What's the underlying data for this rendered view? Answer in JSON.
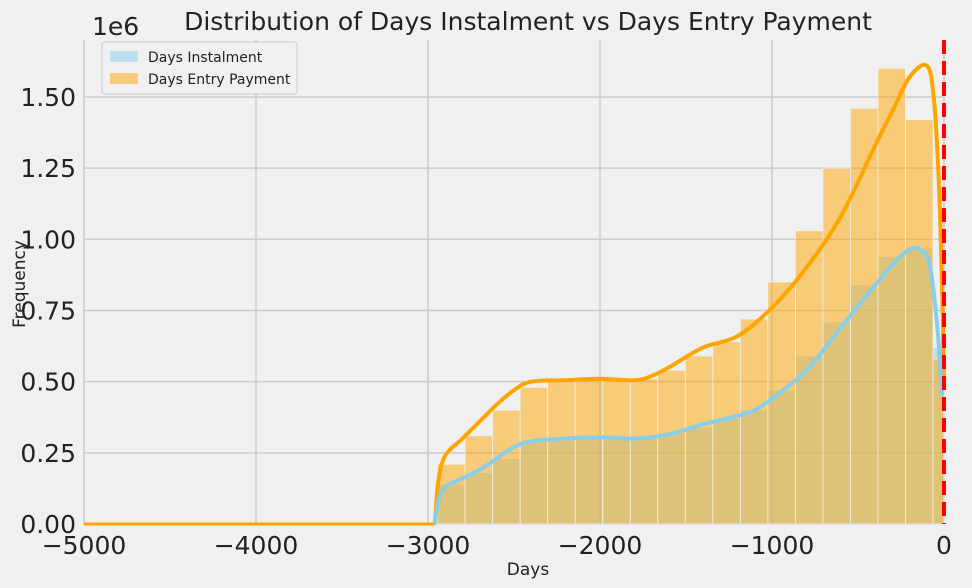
{
  "chart_data": {
    "type": "bar",
    "title": "Distribution of Days Instalment vs Days Entry Payment",
    "xlabel": "Days",
    "ylabel": "Frequency",
    "y_offset_label": "1e6",
    "xlim": [
      -5000,
      0
    ],
    "ylim": [
      0,
      1.7
    ],
    "x_ticks": [
      -5000,
      -4000,
      -3000,
      -2000,
      -1000,
      0
    ],
    "x_tick_labels": [
      "−5000",
      "−4000",
      "−3000",
      "−2000",
      "−1000",
      "0"
    ],
    "y_ticks": [
      0,
      0.25,
      0.5,
      0.75,
      1.0,
      1.25,
      1.5
    ],
    "y_tick_labels": [
      "0.00",
      "0.25",
      "0.50",
      "0.75",
      "1.00",
      "1.25",
      "1.50"
    ],
    "grid": true,
    "legend_position": "top-left",
    "reference_line": {
      "x": 0,
      "color": "#ff0000",
      "style": "dashed"
    },
    "bin_edges": [
      -2944,
      -2784,
      -2624,
      -2464,
      -2304,
      -2144,
      -1984,
      -1824,
      -1664,
      -1504,
      -1344,
      -1184,
      -1024,
      -864,
      -704,
      -544,
      -384,
      -224,
      -64
    ],
    "series": [
      {
        "name": "Days Instalment",
        "color": "#87ceeb",
        "values": [
          0.14,
          0.18,
          0.23,
          0.29,
          0.3,
          0.3,
          0.3,
          0.3,
          0.32,
          0.34,
          0.37,
          0.4,
          0.47,
          0.59,
          0.71,
          0.84,
          0.94,
          0.97,
          0.62
        ],
        "kde": [
          [
            -2960,
            0.0
          ],
          [
            -2940,
            0.08
          ],
          [
            -2900,
            0.13
          ],
          [
            -2800,
            0.16
          ],
          [
            -2700,
            0.19
          ],
          [
            -2600,
            0.23
          ],
          [
            -2500,
            0.27
          ],
          [
            -2400,
            0.29
          ],
          [
            -2200,
            0.3
          ],
          [
            -2000,
            0.305
          ],
          [
            -1800,
            0.3
          ],
          [
            -1600,
            0.315
          ],
          [
            -1400,
            0.35
          ],
          [
            -1200,
            0.38
          ],
          [
            -1100,
            0.4
          ],
          [
            -1000,
            0.44
          ],
          [
            -800,
            0.54
          ],
          [
            -600,
            0.69
          ],
          [
            -400,
            0.84
          ],
          [
            -300,
            0.91
          ],
          [
            -200,
            0.965
          ],
          [
            -130,
            0.96
          ],
          [
            -80,
            0.9
          ],
          [
            -40,
            0.7
          ],
          [
            -10,
            0.45
          ]
        ]
      },
      {
        "name": "Days Entry Payment",
        "color": "#ffa500",
        "values": [
          0.21,
          0.31,
          0.4,
          0.48,
          0.5,
          0.51,
          0.51,
          0.51,
          0.54,
          0.59,
          0.64,
          0.72,
          0.85,
          1.03,
          1.25,
          1.46,
          1.6,
          1.42,
          0.58
        ],
        "kde": [
          [
            -2960,
            0.0
          ],
          [
            -2940,
            0.15
          ],
          [
            -2900,
            0.24
          ],
          [
            -2800,
            0.3
          ],
          [
            -2700,
            0.36
          ],
          [
            -2600,
            0.42
          ],
          [
            -2500,
            0.47
          ],
          [
            -2400,
            0.5
          ],
          [
            -2200,
            0.505
          ],
          [
            -2000,
            0.51
          ],
          [
            -1800,
            0.505
          ],
          [
            -1700,
            0.52
          ],
          [
            -1600,
            0.55
          ],
          [
            -1400,
            0.62
          ],
          [
            -1200,
            0.66
          ],
          [
            -1000,
            0.76
          ],
          [
            -800,
            0.9
          ],
          [
            -600,
            1.08
          ],
          [
            -400,
            1.33
          ],
          [
            -300,
            1.45
          ],
          [
            -200,
            1.57
          ],
          [
            -100,
            1.61
          ],
          [
            -60,
            1.5
          ],
          [
            -30,
            1.2
          ],
          [
            -10,
            0.8
          ],
          [
            0,
            0.5
          ]
        ]
      }
    ]
  }
}
